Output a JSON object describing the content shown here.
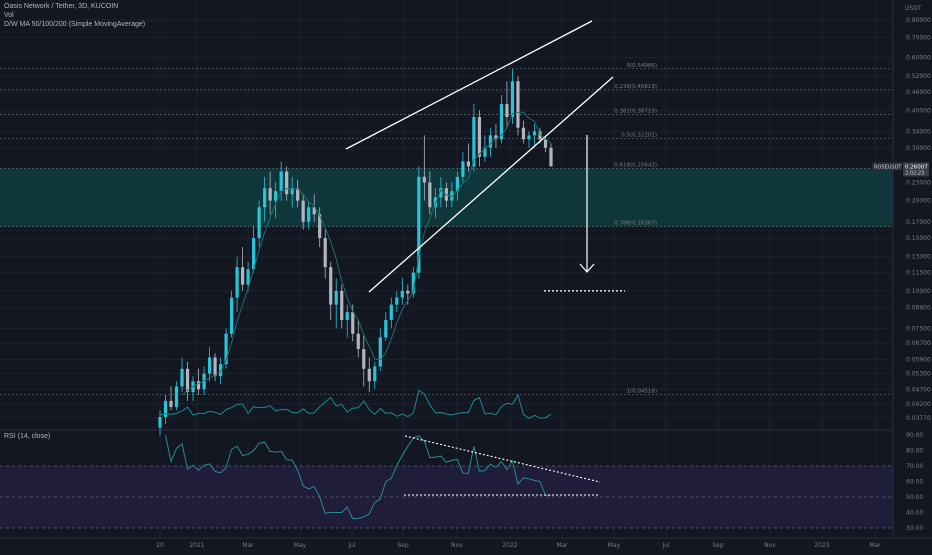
{
  "header": {
    "title": "Oasis Network / Tether, 3D, KUCOIN",
    "vol_label": "Vol",
    "ma_label": "D/W MA 50/100/200 (Simple MovingAverage)",
    "rsi_label": "RSI (14, close)"
  },
  "colors": {
    "background": "#131722",
    "grid": "#1e222d",
    "up": "#26c6da",
    "down": "#b2b5be",
    "text": "#787b86",
    "zone": "#0f3a3e",
    "rsi_band": "#1f1d3a",
    "rsi_line": "#2a8a93",
    "vol_line": "#1a8a93",
    "ma_line": "#1e6f6b",
    "white": "#ffffff"
  },
  "chart_data": {
    "type": "candlestick",
    "symbol": "ROSEUSDT",
    "price_axis_labels": [
      "0.80000",
      "0.70000",
      "0.60000",
      "0.52000",
      "0.46000",
      "0.40000",
      "0.34000",
      "0.30000",
      "0.23000",
      "0.20000",
      "0.17000",
      "0.15000",
      "0.13000",
      "0.11500",
      "0.10000",
      "0.08800",
      "0.07500",
      "0.06700",
      "0.05900",
      "0.05300",
      "0.04700",
      "0.04200",
      "0.03770"
    ],
    "price_axis_unit": "USDT",
    "current_price": "0.26007",
    "current_time": "2:02:23",
    "rsi_axis_labels": [
      "90.00",
      "80.00",
      "70.00",
      "60.00",
      "50.00",
      "40.00",
      "30.00"
    ],
    "time_axis_labels": [
      "20",
      "2021",
      "Mar",
      "May",
      "Jul",
      "Sep",
      "Nov",
      "2022",
      "Mar",
      "May",
      "Jul",
      "Sep",
      "Nov",
      "2023",
      "Mar"
    ],
    "fib_levels": [
      {
        "label": "0(0.54986)",
        "value": 0.55
      },
      {
        "label": "0.236(0.46819)",
        "value": 0.468
      },
      {
        "label": "0.382(0.38719)",
        "value": 0.387
      },
      {
        "label": "0.5(0.32202)",
        "value": 0.322
      },
      {
        "label": "0.618(0.25643)",
        "value": 0.256
      },
      {
        "label": "0.786(0.16367)",
        "value": 0.164
      },
      {
        "label": "1(0.04518)",
        "value": 0.04518
      }
    ],
    "target_level": 0.1,
    "candles": [
      [
        0.035,
        0.04,
        0.033,
        0.038
      ],
      [
        0.038,
        0.045,
        0.036,
        0.043
      ],
      [
        0.043,
        0.048,
        0.04,
        0.041
      ],
      [
        0.041,
        0.05,
        0.04,
        0.048
      ],
      [
        0.048,
        0.06,
        0.046,
        0.055
      ],
      [
        0.055,
        0.058,
        0.043,
        0.046
      ],
      [
        0.046,
        0.052,
        0.043,
        0.05
      ],
      [
        0.05,
        0.055,
        0.045,
        0.047
      ],
      [
        0.047,
        0.056,
        0.045,
        0.053
      ],
      [
        0.053,
        0.065,
        0.05,
        0.06
      ],
      [
        0.06,
        0.062,
        0.05,
        0.052
      ],
      [
        0.052,
        0.06,
        0.049,
        0.057
      ],
      [
        0.057,
        0.075,
        0.055,
        0.072
      ],
      [
        0.072,
        0.1,
        0.07,
        0.095
      ],
      [
        0.095,
        0.13,
        0.085,
        0.12
      ],
      [
        0.12,
        0.14,
        0.1,
        0.105
      ],
      [
        0.105,
        0.125,
        0.1,
        0.118
      ],
      [
        0.118,
        0.165,
        0.115,
        0.15
      ],
      [
        0.15,
        0.2,
        0.14,
        0.19
      ],
      [
        0.19,
        0.24,
        0.17,
        0.22
      ],
      [
        0.22,
        0.25,
        0.18,
        0.2
      ],
      [
        0.2,
        0.23,
        0.175,
        0.215
      ],
      [
        0.215,
        0.27,
        0.2,
        0.25
      ],
      [
        0.25,
        0.26,
        0.2,
        0.21
      ],
      [
        0.21,
        0.24,
        0.19,
        0.22
      ],
      [
        0.22,
        0.235,
        0.19,
        0.2
      ],
      [
        0.2,
        0.21,
        0.16,
        0.17
      ],
      [
        0.17,
        0.2,
        0.16,
        0.19
      ],
      [
        0.19,
        0.21,
        0.17,
        0.18
      ],
      [
        0.18,
        0.19,
        0.14,
        0.15
      ],
      [
        0.15,
        0.16,
        0.11,
        0.12
      ],
      [
        0.12,
        0.125,
        0.08,
        0.09
      ],
      [
        0.09,
        0.11,
        0.075,
        0.1
      ],
      [
        0.1,
        0.105,
        0.075,
        0.08
      ],
      [
        0.08,
        0.09,
        0.07,
        0.085
      ],
      [
        0.085,
        0.09,
        0.068,
        0.072
      ],
      [
        0.072,
        0.08,
        0.06,
        0.064
      ],
      [
        0.064,
        0.072,
        0.048,
        0.055
      ],
      [
        0.055,
        0.06,
        0.046,
        0.05
      ],
      [
        0.05,
        0.058,
        0.047,
        0.056
      ],
      [
        0.056,
        0.075,
        0.054,
        0.07
      ],
      [
        0.07,
        0.085,
        0.068,
        0.08
      ],
      [
        0.08,
        0.095,
        0.075,
        0.09
      ],
      [
        0.09,
        0.1,
        0.085,
        0.095
      ],
      [
        0.095,
        0.11,
        0.09,
        0.1
      ],
      [
        0.1,
        0.105,
        0.09,
        0.098
      ],
      [
        0.098,
        0.12,
        0.095,
        0.115
      ],
      [
        0.115,
        0.26,
        0.11,
        0.24
      ],
      [
        0.24,
        0.33,
        0.2,
        0.23
      ],
      [
        0.23,
        0.25,
        0.18,
        0.19
      ],
      [
        0.19,
        0.22,
        0.175,
        0.205
      ],
      [
        0.205,
        0.24,
        0.19,
        0.22
      ],
      [
        0.22,
        0.23,
        0.19,
        0.2
      ],
      [
        0.2,
        0.23,
        0.19,
        0.215
      ],
      [
        0.215,
        0.25,
        0.2,
        0.24
      ],
      [
        0.24,
        0.29,
        0.23,
        0.27
      ],
      [
        0.27,
        0.31,
        0.25,
        0.26
      ],
      [
        0.26,
        0.42,
        0.25,
        0.38
      ],
      [
        0.38,
        0.4,
        0.26,
        0.28
      ],
      [
        0.28,
        0.33,
        0.27,
        0.3
      ],
      [
        0.3,
        0.35,
        0.28,
        0.33
      ],
      [
        0.33,
        0.36,
        0.3,
        0.32
      ],
      [
        0.32,
        0.45,
        0.31,
        0.42
      ],
      [
        0.42,
        0.5,
        0.35,
        0.38
      ],
      [
        0.38,
        0.55,
        0.36,
        0.5
      ],
      [
        0.5,
        0.52,
        0.33,
        0.35
      ],
      [
        0.35,
        0.37,
        0.31,
        0.32
      ],
      [
        0.32,
        0.34,
        0.3,
        0.33
      ],
      [
        0.33,
        0.36,
        0.3,
        0.34
      ],
      [
        0.34,
        0.35,
        0.31,
        0.32
      ],
      [
        0.32,
        0.33,
        0.29,
        0.3
      ],
      [
        0.3,
        0.31,
        0.26,
        0.26
      ]
    ]
  }
}
